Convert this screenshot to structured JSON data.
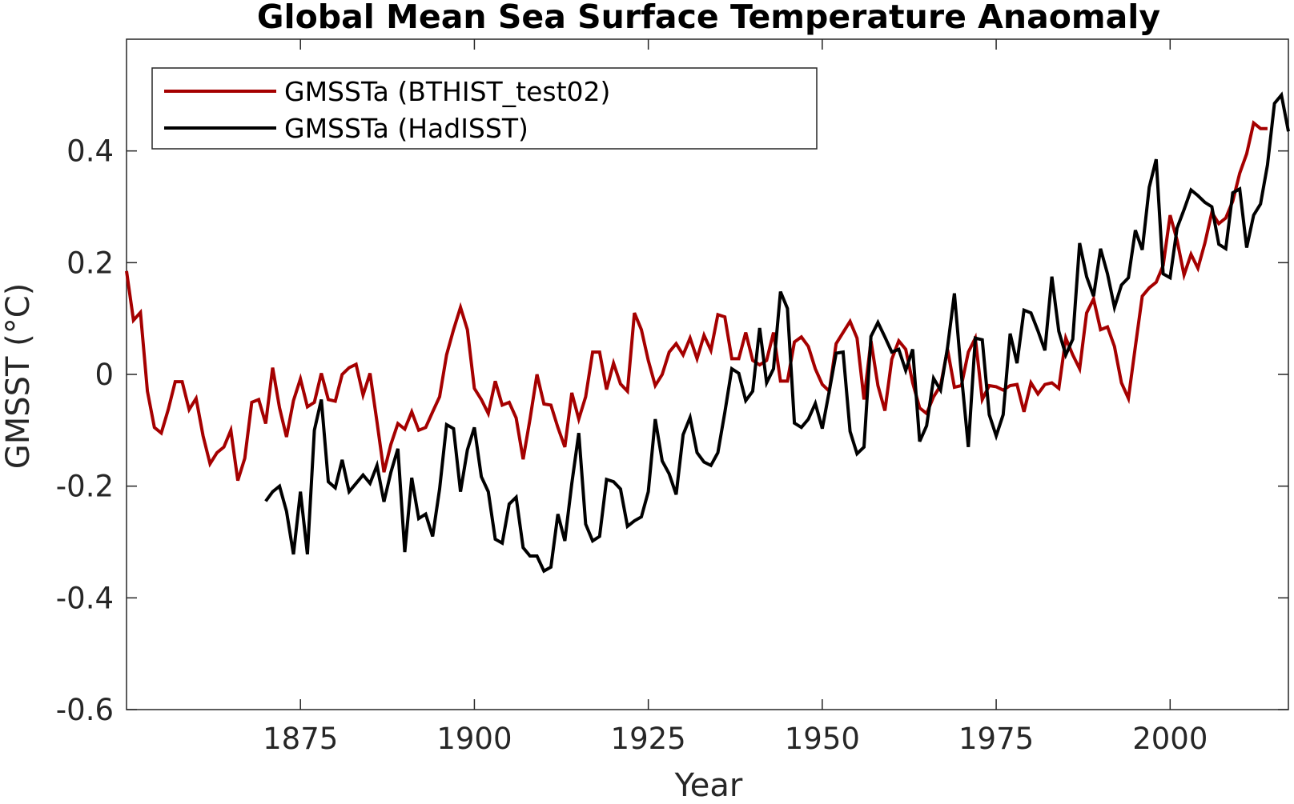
{
  "chart_data": {
    "type": "line",
    "title": "Global Mean Sea Surface Temperature Anaomaly",
    "xlabel": "Year",
    "ylabel": "GMSST (°C)",
    "xlim": [
      1850,
      2017
    ],
    "ylim": [
      -0.6,
      0.6
    ],
    "xticks": [
      1875,
      1900,
      1925,
      1950,
      1975,
      2000
    ],
    "xtick_labels": [
      "1875",
      "1900",
      "1925",
      "1950",
      "1975",
      "2000"
    ],
    "yticks": [
      0.4,
      0.2,
      0,
      -0.2,
      -0.4,
      -0.6
    ],
    "ytick_labels": [
      "0.4",
      "0.2",
      "0",
      "-0.2",
      "-0.4",
      "-0.6"
    ],
    "grid": false,
    "legend_position": "top-left",
    "series": [
      {
        "name": "GMSSTa (BTHIST_test02)",
        "color": "#a50000",
        "x_start": 1850,
        "values": [
          0.185,
          0.097,
          0.111,
          -0.03,
          -0.095,
          -0.105,
          -0.063,
          -0.013,
          -0.013,
          -0.063,
          -0.043,
          -0.11,
          -0.16,
          -0.14,
          -0.13,
          -0.1,
          -0.19,
          -0.15,
          -0.05,
          -0.045,
          -0.088,
          0.012,
          -0.06,
          -0.112,
          -0.047,
          -0.008,
          -0.058,
          -0.05,
          0.002,
          -0.045,
          -0.048,
          0.0,
          0.012,
          0.018,
          -0.037,
          0.002,
          -0.085,
          -0.175,
          -0.125,
          -0.088,
          -0.098,
          -0.067,
          -0.1,
          -0.095,
          -0.067,
          -0.04,
          0.035,
          0.08,
          0.12,
          0.08,
          -0.025,
          -0.045,
          -0.07,
          -0.012,
          -0.055,
          -0.05,
          -0.078,
          -0.152,
          -0.08,
          0.0,
          -0.053,
          -0.055,
          -0.095,
          -0.13,
          -0.033,
          -0.08,
          -0.04,
          0.04,
          0.04,
          -0.027,
          0.02,
          -0.017,
          -0.03,
          0.11,
          0.08,
          0.025,
          -0.02,
          0.0,
          0.04,
          0.055,
          0.035,
          0.065,
          0.028,
          0.07,
          0.043,
          0.107,
          0.103,
          0.028,
          0.028,
          0.075,
          0.025,
          0.017,
          0.025,
          0.075,
          -0.012,
          -0.012,
          0.058,
          0.067,
          0.05,
          0.01,
          -0.018,
          -0.03,
          0.055,
          0.075,
          0.095,
          0.065,
          -0.045,
          0.06,
          -0.02,
          -0.065,
          0.027,
          0.06,
          0.045,
          -0.015,
          -0.06,
          -0.07,
          -0.04,
          -0.02,
          0.045,
          -0.023,
          -0.02,
          0.04,
          0.065,
          -0.045,
          -0.02,
          -0.022,
          -0.028,
          -0.02,
          -0.018,
          -0.067,
          -0.015,
          -0.035,
          -0.018,
          -0.015,
          -0.025,
          0.065,
          0.035,
          0.01,
          0.11,
          0.135,
          0.08,
          0.085,
          0.05,
          -0.015,
          -0.043,
          0.05,
          0.14,
          0.155,
          0.165,
          0.195,
          0.285,
          0.24,
          0.178,
          0.215,
          0.19,
          0.235,
          0.29,
          0.27,
          0.28,
          0.31,
          0.36,
          0.395,
          0.45,
          0.44,
          0.44
        ]
      },
      {
        "name": "GMSSTa (HadISST)",
        "color": "#000000",
        "x_start": 1870,
        "values": [
          -0.227,
          -0.21,
          -0.2,
          -0.245,
          -0.322,
          -0.21,
          -0.322,
          -0.1,
          -0.045,
          -0.192,
          -0.203,
          -0.153,
          -0.21,
          -0.195,
          -0.18,
          -0.195,
          -0.163,
          -0.228,
          -0.175,
          -0.133,
          -0.318,
          -0.185,
          -0.258,
          -0.25,
          -0.29,
          -0.205,
          -0.09,
          -0.097,
          -0.21,
          -0.135,
          -0.095,
          -0.183,
          -0.21,
          -0.295,
          -0.302,
          -0.232,
          -0.22,
          -0.31,
          -0.325,
          -0.325,
          -0.352,
          -0.345,
          -0.25,
          -0.298,
          -0.195,
          -0.105,
          -0.268,
          -0.298,
          -0.29,
          -0.188,
          -0.192,
          -0.205,
          -0.272,
          -0.262,
          -0.255,
          -0.21,
          -0.08,
          -0.155,
          -0.178,
          -0.215,
          -0.108,
          -0.077,
          -0.14,
          -0.157,
          -0.163,
          -0.14,
          -0.068,
          0.01,
          0.002,
          -0.047,
          -0.03,
          0.083,
          -0.015,
          0.01,
          0.148,
          0.118,
          -0.087,
          -0.095,
          -0.08,
          -0.052,
          -0.097,
          -0.03,
          0.038,
          0.04,
          -0.102,
          -0.142,
          -0.13,
          0.068,
          0.093,
          0.067,
          0.04,
          0.045,
          0.007,
          0.045,
          -0.12,
          -0.092,
          -0.007,
          -0.028,
          0.048,
          0.145,
          0.0,
          -0.13,
          0.065,
          0.062,
          -0.072,
          -0.11,
          -0.072,
          0.073,
          0.02,
          0.115,
          0.11,
          0.078,
          0.043,
          0.175,
          0.077,
          0.035,
          0.063,
          0.235,
          0.175,
          0.14,
          0.225,
          0.18,
          0.12,
          0.16,
          0.173,
          0.258,
          0.223,
          0.335,
          0.385,
          0.18,
          0.173,
          0.262,
          0.295,
          0.33,
          0.32,
          0.308,
          0.3,
          0.233,
          0.225,
          0.325,
          0.332,
          0.227,
          0.285,
          0.305,
          0.375,
          0.485,
          0.5,
          0.435
        ]
      }
    ]
  }
}
